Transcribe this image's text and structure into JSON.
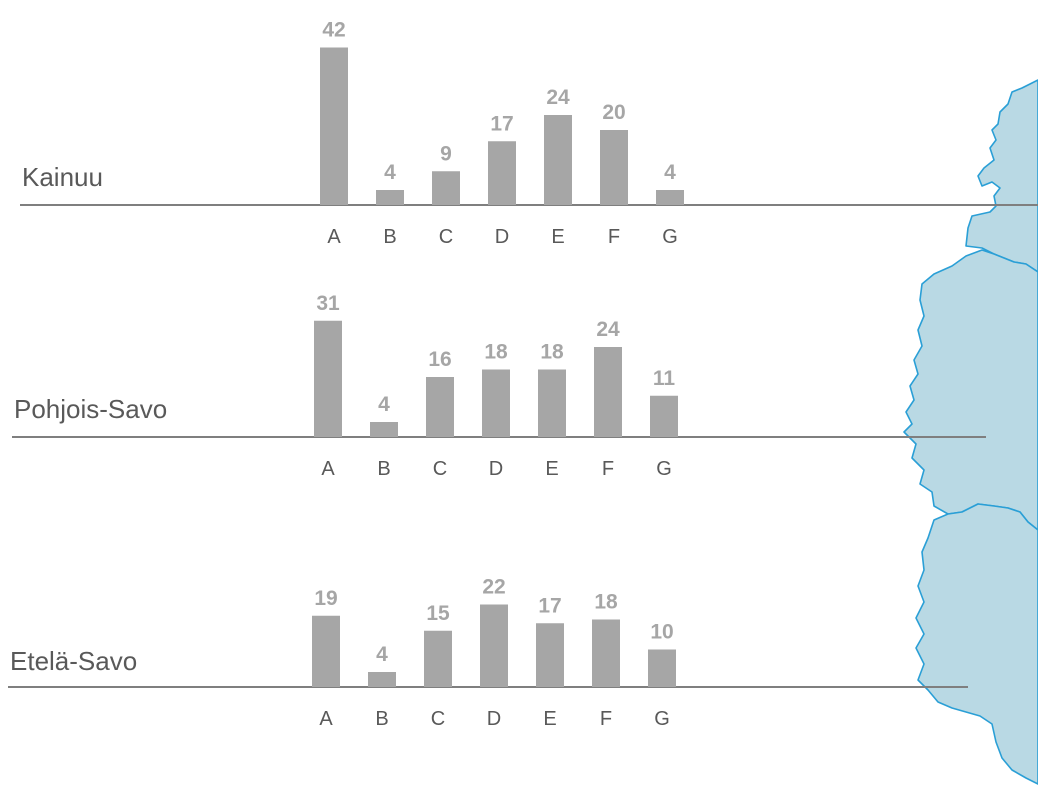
{
  "colors": {
    "bar": "#a6a6a6",
    "value_label": "#a6a6a6",
    "baseline": "#7f7f7f",
    "region_label": "#595959",
    "category_label": "#595959",
    "map_fill": "#b9d9e4",
    "map_stroke": "#2a9fd6"
  },
  "chart_data": [
    {
      "type": "bar",
      "title": "Kainuu",
      "categories": [
        "A",
        "B",
        "C",
        "D",
        "E",
        "F",
        "G"
      ],
      "values": [
        42,
        4,
        9,
        17,
        24,
        20,
        4
      ]
    },
    {
      "type": "bar",
      "title": "Pohjois-Savo",
      "categories": [
        "A",
        "B",
        "C",
        "D",
        "E",
        "F",
        "G"
      ],
      "values": [
        31,
        4,
        16,
        18,
        18,
        24,
        11
      ]
    },
    {
      "type": "bar",
      "title": "Etelä-Savo",
      "categories": [
        "A",
        "B",
        "C",
        "D",
        "E",
        "F",
        "G"
      ],
      "values": [
        19,
        4,
        15,
        22,
        17,
        18,
        10
      ]
    }
  ]
}
